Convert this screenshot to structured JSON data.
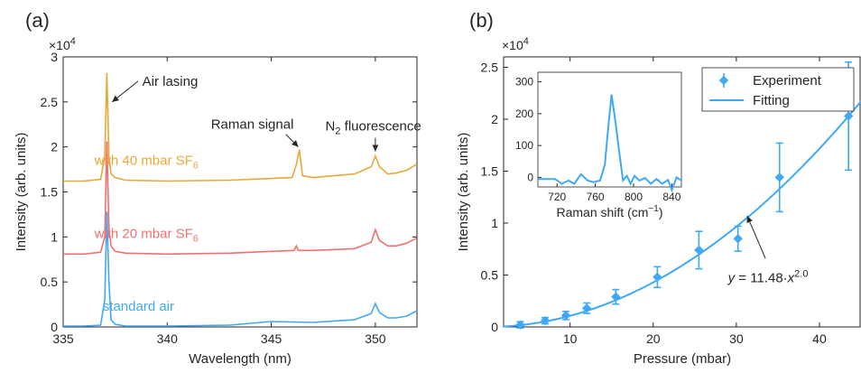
{
  "panel_a_label": "(a)",
  "panel_b_label": "(b)",
  "chart_data": [
    {
      "type": "line",
      "panel": "(a)",
      "xlabel": "Wavelength (nm)",
      "ylabel": "Intensity (arb. units)",
      "y_multiplier": "×10",
      "y_multiplier_exp": "4",
      "xlim": [
        335,
        352
      ],
      "ylim": [
        0,
        3
      ],
      "xticks": [
        335,
        340,
        345,
        350
      ],
      "yticks": [
        0,
        0.5,
        1,
        1.5,
        2,
        2.5,
        3
      ],
      "ytick_labels": [
        "0",
        "0.5",
        "1",
        "1.5",
        "2",
        "2.5",
        "3"
      ],
      "grid": false,
      "series": [
        {
          "name": "standard air",
          "name_main": "standard air",
          "name_sub": "",
          "color": "#3fa9f5",
          "x": [
            335,
            336,
            336.8,
            337.0,
            337.1,
            337.2,
            337.3,
            337.5,
            338,
            340,
            343,
            345,
            347,
            349,
            349.8,
            350.0,
            350.2,
            350.6,
            351,
            351.5,
            352
          ],
          "y": [
            0.01,
            0.01,
            0.02,
            0.3,
            1.28,
            0.5,
            0.08,
            0.03,
            0.01,
            0.01,
            0.02,
            0.06,
            0.05,
            0.08,
            0.15,
            0.26,
            0.16,
            0.1,
            0.1,
            0.12,
            0.18
          ]
        },
        {
          "name": "with 20 mbar SF6",
          "name_main": "with 20 mbar SF",
          "name_sub": "6",
          "color": "#f07070",
          "x": [
            335,
            336,
            336.8,
            337.0,
            337.1,
            337.2,
            337.3,
            337.5,
            338,
            340,
            343,
            345,
            346.1,
            346.2,
            346.3,
            347,
            349,
            349.8,
            350.0,
            350.2,
            350.6,
            351,
            351.5,
            352
          ],
          "y": [
            0.81,
            0.81,
            0.83,
            1.0,
            2.06,
            1.1,
            0.9,
            0.84,
            0.82,
            0.81,
            0.82,
            0.84,
            0.85,
            0.9,
            0.85,
            0.85,
            0.87,
            0.94,
            1.08,
            0.96,
            0.9,
            0.9,
            0.93,
            0.99
          ]
        },
        {
          "name": "with 40 mbar SF6",
          "name_main": "with 40 mbar SF",
          "name_sub": "6",
          "color": "#e8a838",
          "x": [
            335,
            336,
            336.8,
            337.0,
            337.1,
            337.2,
            337.3,
            337.5,
            338,
            340,
            343,
            345,
            346.0,
            346.2,
            346.35,
            346.5,
            347,
            349,
            349.8,
            350.0,
            350.2,
            350.6,
            351,
            351.5,
            352
          ],
          "y": [
            1.62,
            1.62,
            1.64,
            1.9,
            2.82,
            1.9,
            1.7,
            1.66,
            1.63,
            1.62,
            1.63,
            1.65,
            1.66,
            1.8,
            1.97,
            1.68,
            1.66,
            1.7,
            1.78,
            1.9,
            1.78,
            1.7,
            1.71,
            1.74,
            1.81
          ]
        }
      ],
      "annotations": [
        {
          "text": "Air lasing",
          "main": "Air lasing",
          "sub": ""
        },
        {
          "text": "Raman signal",
          "main": "Raman signal",
          "sub": ""
        },
        {
          "text": "N2 fluorescence",
          "pre": "N",
          "sub": "2",
          "post": " fluorescence"
        }
      ]
    },
    {
      "type": "scatter",
      "panel": "(b)",
      "xlabel": "Pressure (mbar)",
      "ylabel": "Intensity (arb. units)",
      "y_multiplier": "×10",
      "y_multiplier_exp": "4",
      "xlim": [
        2,
        45
      ],
      "ylim": [
        0,
        2.6
      ],
      "xticks": [
        10,
        20,
        30,
        40
      ],
      "yticks": [
        0,
        0.5,
        1,
        1.5,
        2,
        2.5
      ],
      "ytick_labels": [
        "0",
        "0.5",
        "1",
        "1.5",
        "2",
        "2.5"
      ],
      "grid": false,
      "legend_position": "top-right",
      "series": [
        {
          "name": "Experiment",
          "color": "#3fa9f5",
          "marker": "diamond",
          "x": [
            4,
            7,
            9.5,
            12,
            15.5,
            20.5,
            25.5,
            30.2,
            35.2,
            43.5
          ],
          "y": [
            0.02,
            0.06,
            0.11,
            0.18,
            0.29,
            0.48,
            0.74,
            0.85,
            1.44,
            2.03
          ],
          "err": [
            0.03,
            0.03,
            0.04,
            0.05,
            0.07,
            0.1,
            0.18,
            0.12,
            0.33,
            0.52
          ]
        },
        {
          "name": "Fitting",
          "color": "#3fa9f5",
          "type": "line",
          "formula_pre": "y",
          "formula_mid": " = 11.48·",
          "formula_var": "x",
          "formula_exp": "2.0"
        }
      ],
      "inset": {
        "type": "line",
        "xlabel": "Raman shift (cm",
        "xlabel_sup": "−1",
        "xlabel_post": ")",
        "xlim": [
          700,
          850
        ],
        "ylim": [
          -30,
          330
        ],
        "xticks": [
          720,
          760,
          800,
          840
        ],
        "yticks": [
          0,
          100,
          200,
          300
        ],
        "x": [
          700,
          710,
          718,
          725,
          732,
          738,
          745,
          752,
          758,
          765,
          770,
          773,
          777,
          781,
          785,
          789,
          793,
          797,
          801,
          806,
          812,
          818,
          824,
          830,
          836,
          840,
          845,
          850
        ],
        "y": [
          -5,
          -5,
          -5,
          -20,
          -10,
          -20,
          10,
          -10,
          -15,
          -10,
          40,
          140,
          260,
          175,
          80,
          -10,
          5,
          -20,
          5,
          -10,
          -2,
          -20,
          -5,
          -20,
          -8,
          -40,
          0,
          -10
        ]
      }
    }
  ]
}
